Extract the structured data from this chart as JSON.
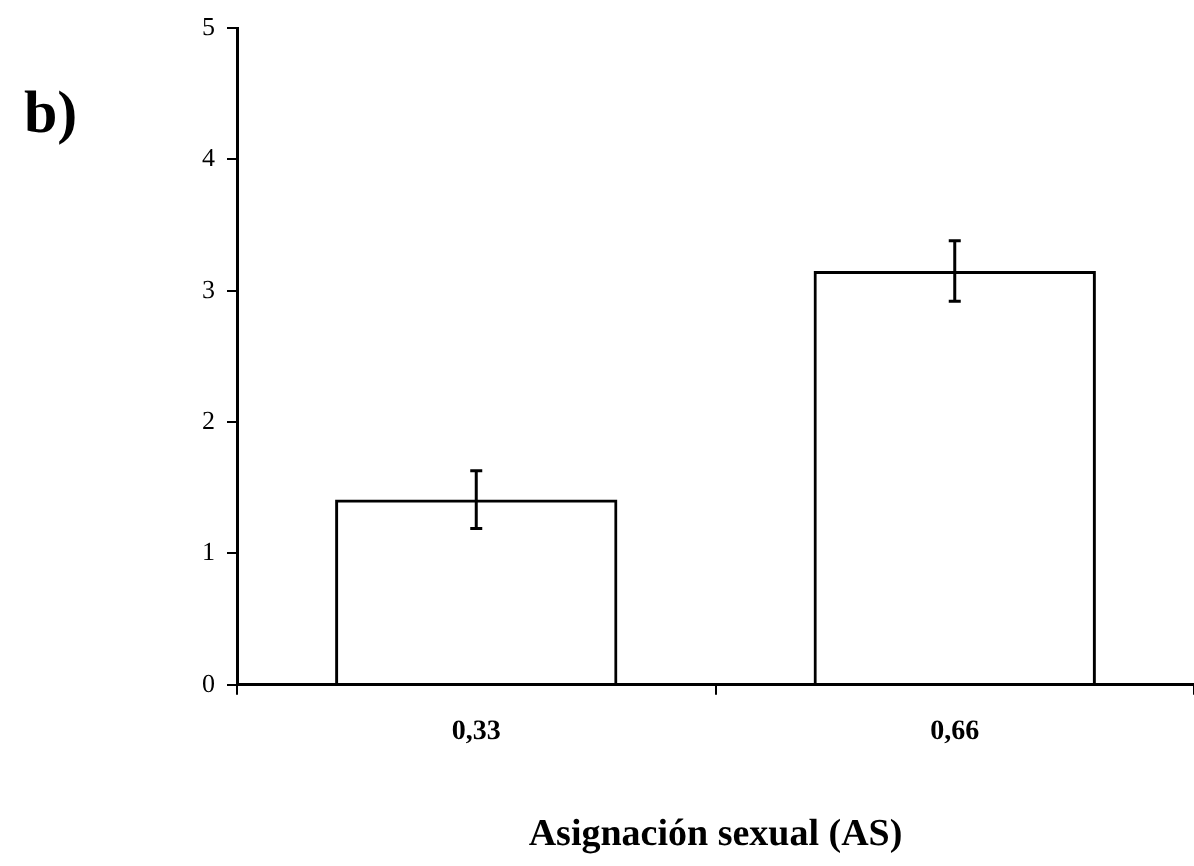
{
  "chart_data": {
    "type": "bar",
    "xlabel": "Asignación sexual (AS)",
    "annotations": [
      "b)"
    ],
    "categories": [
      "0,33",
      "0,66"
    ],
    "values": [
      1.41,
      3.15
    ],
    "errors": [
      0.22,
      0.23
    ],
    "color": "#000000",
    "ylim": [
      0,
      5
    ],
    "yticks": [
      0,
      1,
      2,
      3,
      4,
      5
    ],
    "grid": false,
    "legend": false
  }
}
